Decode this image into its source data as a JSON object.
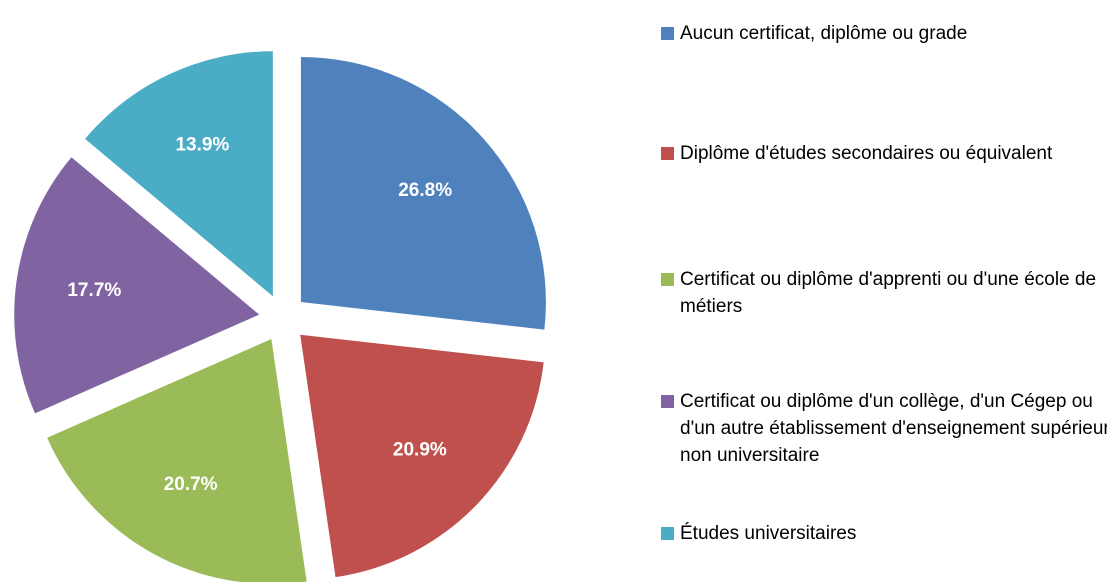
{
  "chart_data": {
    "type": "pie",
    "categories": [
      "Aucun certificat, diplôme ou grade",
      "Diplôme d'études secondaires ou équivalent",
      "Certificat ou diplôme d'apprenti ou d'une école de métiers",
      "Certificat ou diplôme d'un collège, d'un Cégep ou d'un autre établissement d'enseignement supérieur non universitaire",
      "Études universitaires"
    ],
    "values": [
      26.8,
      20.9,
      20.7,
      17.7,
      13.9
    ],
    "value_labels": [
      "26.8%",
      "20.9%",
      "20.7%",
      "17.7%",
      "13.9%"
    ],
    "colors": [
      "#4f81bd",
      "#c0504d",
      "#9bbb59",
      "#8064a2",
      "#4bacc6"
    ],
    "legend": "right"
  }
}
